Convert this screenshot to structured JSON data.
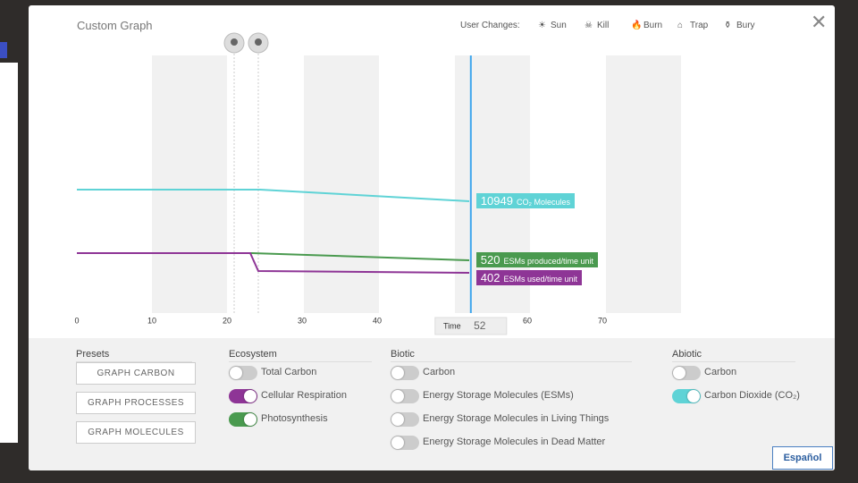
{
  "graph": {
    "title": "Custom Graph",
    "user_changes_label": "User Changes:",
    "legend": [
      "Sun",
      "Kill",
      "Burn",
      "Trap",
      "Bury"
    ],
    "xticks": [
      0,
      10,
      20,
      30,
      40,
      60,
      70
    ],
    "time_label": "Time",
    "time": 52,
    "readouts": [
      {
        "value": 10949,
        "label": "CO₂ Molecules",
        "color": "#5fd3d6"
      },
      {
        "value": 520,
        "label": "ESMs produced/time unit",
        "color": "#4a9a4f"
      },
      {
        "value": 402,
        "label": "ESMs used/time unit",
        "color": "#8e3596"
      }
    ]
  },
  "controls": {
    "presets": {
      "title": "Presets",
      "buttons": [
        "GRAPH CARBON",
        "GRAPH PROCESSES",
        "GRAPH MOLECULES"
      ]
    },
    "ecosystem": {
      "title": "Ecosystem",
      "items": [
        {
          "label": "Total Carbon",
          "on": false
        },
        {
          "label": "Cellular Respiration",
          "on": true,
          "color": "#8e3596"
        },
        {
          "label": "Photosynthesis",
          "on": true,
          "color": "#4a9a4f"
        }
      ]
    },
    "biotic": {
      "title": "Biotic",
      "items": [
        {
          "label": "Carbon",
          "on": false
        },
        {
          "label": "Energy Storage Molecules (ESMs)",
          "on": false
        },
        {
          "label": "Energy Storage Molecules in Living Things",
          "on": false
        },
        {
          "label": "Energy Storage Molecules in Dead Matter",
          "on": false
        }
      ]
    },
    "abiotic": {
      "title": "Abiotic",
      "items": [
        {
          "label": "Carbon",
          "on": false
        },
        {
          "label": "Carbon Dioxide (CO₂)",
          "on": true,
          "color": "#5fd3d6"
        }
      ]
    },
    "language_button": "Español"
  }
}
